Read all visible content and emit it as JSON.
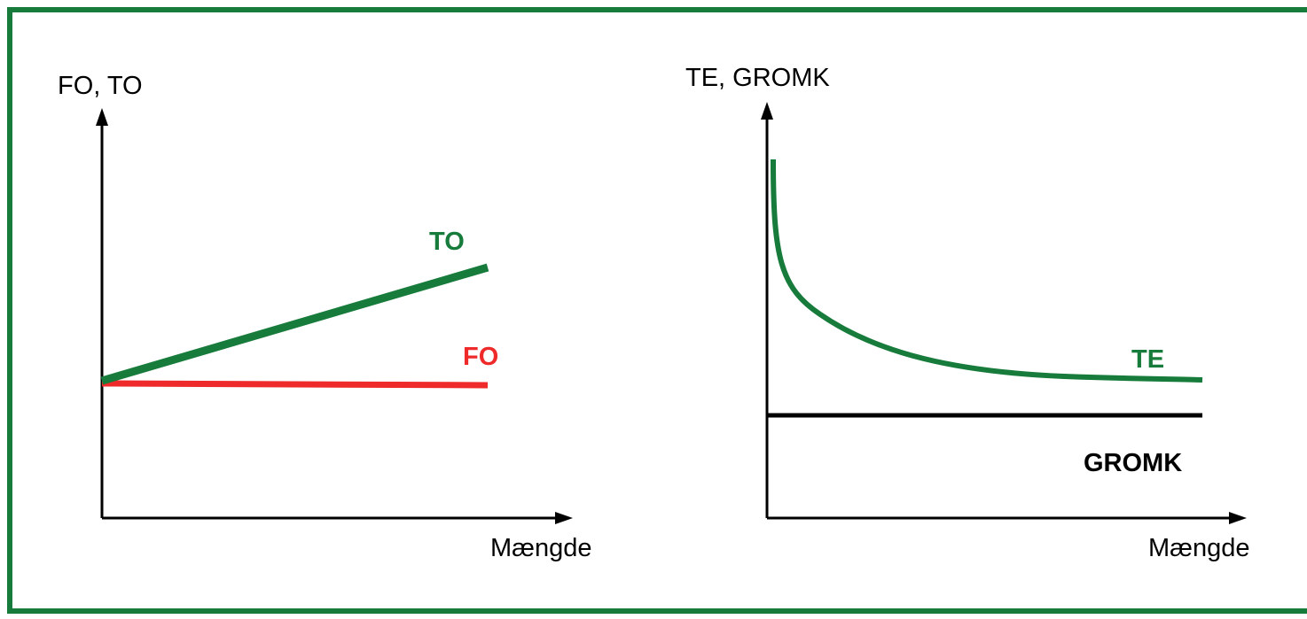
{
  "panels": [
    {
      "y_label": "FO, TO",
      "x_label": "Mængde",
      "curves": [
        "TO",
        "FO"
      ]
    },
    {
      "y_label": "TE, GROMK",
      "x_label": "Mængde",
      "curves": [
        "TE",
        "GROMK"
      ]
    }
  ]
}
